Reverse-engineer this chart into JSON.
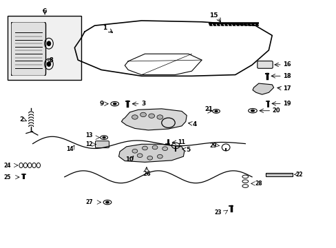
{
  "bg_color": "#ffffff",
  "figsize": [
    4.89,
    3.6
  ],
  "dpi": 100
}
